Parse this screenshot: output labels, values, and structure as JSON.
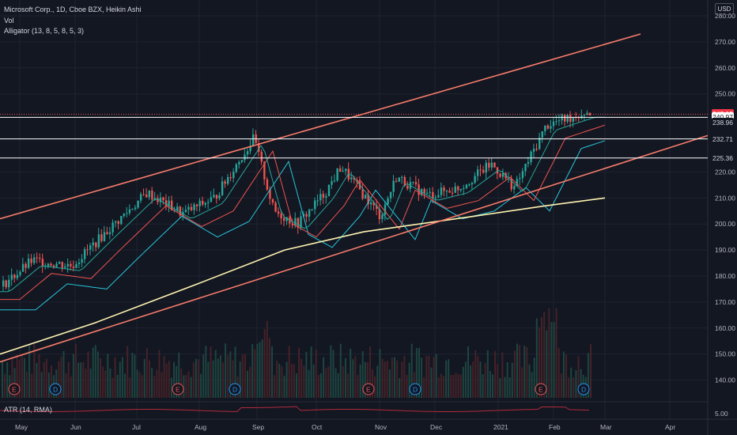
{
  "legend": {
    "symbol": "Microsoft Corp., 1D, Cboe BZX, Heikin Ashi",
    "vol": "Vol",
    "alligator": "Alligator (13, 8, 5, 8, 5, 3)"
  },
  "atr_label": "ATR (14, RMA)",
  "atr_value": "5.00",
  "currency": "USD",
  "price_axis": [
    "280.00",
    "270.00",
    "260.00",
    "250.00",
    "220.00",
    "210.00",
    "200.00",
    "190.00",
    "180.00",
    "170.00",
    "160.00",
    "150.00",
    "140.00"
  ],
  "price_axis_values": [
    280,
    270,
    260,
    250,
    220,
    210,
    200,
    190,
    180,
    170,
    160,
    150,
    140
  ],
  "price_tags": [
    {
      "value": "242.19",
      "price": 242.19,
      "bg": "#f23645",
      "fg": "#ffffff"
    },
    {
      "value": "240.97",
      "price": 240.97,
      "bg": "#ffffff",
      "fg": "#131722"
    },
    {
      "value": "238.96",
      "price": 238.96,
      "bg": "#131722",
      "fg": "#d1d4dc"
    },
    {
      "value": "232.71",
      "price": 232.71,
      "bg": "#131722",
      "fg": "#d1d4dc"
    },
    {
      "value": "225.36",
      "price": 225.36,
      "bg": "#131722",
      "fg": "#d1d4dc"
    }
  ],
  "time_axis": [
    "May",
    "Jun",
    "Jul",
    "Aug",
    "Sep",
    "Oct",
    "Nov",
    "Dec",
    "2021",
    "Feb",
    "Mar",
    "Apr"
  ],
  "events": [
    {
      "label": "E",
      "kind": "earnings"
    },
    {
      "label": "D",
      "kind": "dividend"
    },
    {
      "label": "E",
      "kind": "earnings"
    },
    {
      "label": "D",
      "kind": "dividend"
    },
    {
      "label": "E",
      "kind": "earnings"
    },
    {
      "label": "D",
      "kind": "dividend"
    },
    {
      "label": "E",
      "kind": "earnings"
    },
    {
      "label": "D",
      "kind": "dividend"
    }
  ],
  "colors": {
    "bg": "#131722",
    "grid": "#1f2330",
    "up": "#26a69a",
    "down": "#ef5350",
    "channel": "#f77c6a",
    "ma200": "#fff3b0",
    "jaw": "#ef5350",
    "teeth": "#26c6da",
    "lips": "#f48fb1",
    "atr": "#b02a3a",
    "hline": "#ffffff",
    "dotted": "#ef5350"
  }
}
